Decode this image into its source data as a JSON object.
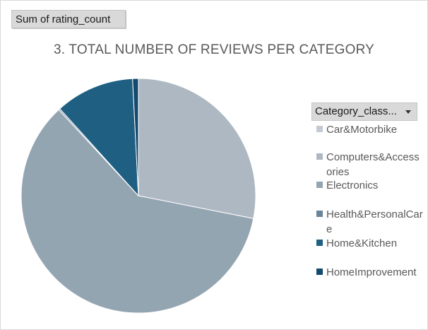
{
  "field_button": {
    "label": "Sum of rating_count"
  },
  "legend": {
    "filter_label": "Category_class...",
    "items": [
      {
        "label": "Car&Motorbike",
        "color": "#c3cad2"
      },
      {
        "label": "Computers&Accessories",
        "color": "#adb8c2"
      },
      {
        "label": "Electronics",
        "color": "#94a5b2"
      },
      {
        "label": "Health&PersonalCare",
        "color": "#6a8499"
      },
      {
        "label": "Home&Kitchen",
        "color": "#1f5f82"
      },
      {
        "label": "HomeImprovement",
        "color": "#134a6e"
      }
    ]
  },
  "chart_data": {
    "type": "pie",
    "title": "3. TOTAL NUMBER OF REVIEWS PER CATEGORY",
    "categories": [
      "Car&Motorbike",
      "Computers&Accessories",
      "Electronics",
      "Health&PersonalCare",
      "Home&Kitchen",
      "HomeImprovement"
    ],
    "values": [
      0.01,
      28.1,
      60.0,
      0.2,
      10.9,
      0.8
    ],
    "value_unit": "percent of total (estimated)",
    "colors": [
      "#c3cad2",
      "#adb8c2",
      "#94a5b2",
      "#6a8499",
      "#1f5f82",
      "#134a6e"
    ],
    "start_angle": "12 o'clock",
    "direction": "clockwise",
    "legend_position": "right"
  }
}
